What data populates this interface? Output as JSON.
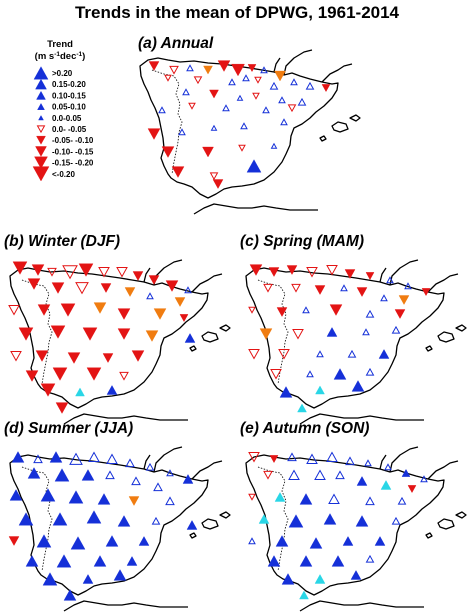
{
  "title": "Trends in the mean of DPWG, 1961-2014",
  "legend": {
    "title": "Trend",
    "unit": "(m s-1dec-1)",
    "unit_parts": {
      "m": "m s",
      "e1": "-1",
      "dec": "dec",
      "e2": "-1",
      "close": ")"
    },
    "classes": [
      {
        "label": ">0.20",
        "dir": "up",
        "filled": true,
        "color": "#1530d8"
      },
      {
        "label": "0.15-0.20",
        "dir": "up",
        "filled": true,
        "color": "#1530d8"
      },
      {
        "label": "0.10-0.15",
        "dir": "up",
        "filled": true,
        "color": "#1530d8"
      },
      {
        "label": "0.05-0.10",
        "dir": "up",
        "filled": true,
        "color": "#1530d8"
      },
      {
        "label": "0.0-0.05",
        "dir": "up",
        "filled": true,
        "color": "#1530d8"
      },
      {
        "label": "0.0- -0.05",
        "dir": "down",
        "filled": false,
        "color": "#e31414"
      },
      {
        "label": "-0.05- -0.10",
        "dir": "down",
        "filled": true,
        "color": "#e31414"
      },
      {
        "label": "-0.10- -0.15",
        "dir": "down",
        "filled": true,
        "color": "#e31414"
      },
      {
        "label": "-0.15- -0.20",
        "dir": "down",
        "filled": true,
        "color": "#e31414"
      },
      {
        "label": "<-0.20",
        "dir": "down",
        "filled": true,
        "color": "#e31414"
      }
    ]
  },
  "colors": {
    "increase": "#1530d8",
    "decrease": "#e31414",
    "orange": "#f07c10",
    "cyan": "#29d6e6",
    "coast": "#000000"
  },
  "panels": [
    {
      "id": "annual",
      "label": "(a) Annual"
    },
    {
      "id": "winter",
      "label": "(b) Winter (DJF)"
    },
    {
      "id": "spring",
      "label": "(c) Spring (MAM)"
    },
    {
      "id": "summer",
      "label": "(d) Summer (JJA)"
    },
    {
      "id": "autumn",
      "label": "(e) Autumn (SON)"
    }
  ]
}
